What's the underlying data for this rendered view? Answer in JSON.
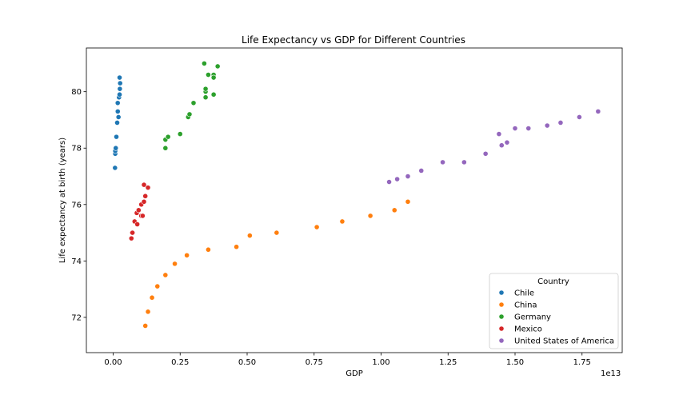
{
  "chart_data": {
    "type": "scatter",
    "title": "Life Expectancy vs GDP for Different Countries",
    "xlabel": "GDP",
    "ylabel": "Life expectancy at birth (years)",
    "x_offset_text": "1e13",
    "xlim": [
      -1000000000000.0,
      19000000000000.0
    ],
    "ylim": [
      70.75,
      81.55
    ],
    "xticks": [
      0,
      2500000000000.0,
      5000000000000.0,
      7500000000000.0,
      10000000000000.0,
      12500000000000.0,
      15000000000000.0,
      17500000000000.0
    ],
    "xtick_labels": [
      "0.00",
      "0.25",
      "0.50",
      "0.75",
      "1.00",
      "1.25",
      "1.50",
      "1.75"
    ],
    "yticks": [
      72,
      74,
      76,
      78,
      80
    ],
    "ytick_labels": [
      "72",
      "74",
      "76",
      "78",
      "80"
    ],
    "grid": false,
    "legend": {
      "title": "Country",
      "placement": "lower-right"
    },
    "series": [
      {
        "name": "Chile",
        "color": "#1f77b4",
        "points": [
          [
            69000000000.0,
            77.3
          ],
          [
            77000000000.0,
            77.8
          ],
          [
            78000000000.0,
            77.9
          ],
          [
            97000000000.0,
            78.0
          ],
          [
            120000000000.0,
            78.4
          ],
          [
            150000000000.0,
            78.9
          ],
          [
            170000000000.0,
            79.6
          ],
          [
            172000000000.0,
            79.3
          ],
          [
            199000000000.0,
            79.1
          ],
          [
            218000000000.0,
            79.8
          ],
          [
            240000000000.0,
            79.9
          ],
          [
            250000000000.0,
            80.1
          ],
          [
            260000000000.0,
            80.3
          ],
          [
            240000000000.0,
            80.5
          ]
        ]
      },
      {
        "name": "China",
        "color": "#ff7f0e",
        "points": [
          [
            1200000000000.0,
            71.7
          ],
          [
            1300000000000.0,
            72.2
          ],
          [
            1450000000000.0,
            72.7
          ],
          [
            1650000000000.0,
            73.1
          ],
          [
            1950000000000.0,
            73.5
          ],
          [
            2300000000000.0,
            73.9
          ],
          [
            2750000000000.0,
            74.2
          ],
          [
            3550000000000.0,
            74.4
          ],
          [
            4600000000000.0,
            74.5
          ],
          [
            5100000000000.0,
            74.9
          ],
          [
            6100000000000.0,
            75.0
          ],
          [
            7600000000000.0,
            75.2
          ],
          [
            8550000000000.0,
            75.4
          ],
          [
            9600000000000.0,
            75.6
          ],
          [
            10500000000000.0,
            75.8
          ],
          [
            11000000000000.0,
            76.1
          ]
        ]
      },
      {
        "name": "Germany",
        "color": "#2ca02c",
        "points": [
          [
            1950000000000.0,
            78.0
          ],
          [
            1950000000000.0,
            78.3
          ],
          [
            2050000000000.0,
            78.4
          ],
          [
            2500000000000.0,
            78.5
          ],
          [
            2800000000000.0,
            79.1
          ],
          [
            2850000000000.0,
            79.2
          ],
          [
            3000000000000.0,
            79.6
          ],
          [
            3450000000000.0,
            79.8
          ],
          [
            3450000000000.0,
            80.0
          ],
          [
            3450000000000.0,
            80.1
          ],
          [
            3750000000000.0,
            79.9
          ],
          [
            3550000000000.0,
            80.6
          ],
          [
            3750000000000.0,
            80.6
          ],
          [
            3750000000000.0,
            80.5
          ],
          [
            3400000000000.0,
            81.0
          ],
          [
            3900000000000.0,
            80.9
          ]
        ]
      },
      {
        "name": "Mexico",
        "color": "#d62728",
        "points": [
          [
            680000000000.0,
            74.8
          ],
          [
            700000000000.0,
            75.0
          ],
          [
            720000000000.0,
            75.0
          ],
          [
            800000000000.0,
            75.4
          ],
          [
            900000000000.0,
            75.3
          ],
          [
            880000000000.0,
            75.7
          ],
          [
            950000000000.0,
            75.8
          ],
          [
            1050000000000.0,
            75.6
          ],
          [
            1100000000000.0,
            75.6
          ],
          [
            1050000000000.0,
            76.0
          ],
          [
            1150000000000.0,
            76.1
          ],
          [
            1200000000000.0,
            76.3
          ],
          [
            1300000000000.0,
            76.6
          ],
          [
            1150000000000.0,
            76.7
          ]
        ]
      },
      {
        "name": "United States of America",
        "color": "#9467bd",
        "points": [
          [
            10300000000000.0,
            76.8
          ],
          [
            10600000000000.0,
            76.9
          ],
          [
            11000000000000.0,
            77.0
          ],
          [
            11500000000000.0,
            77.2
          ],
          [
            12300000000000.0,
            77.5
          ],
          [
            13100000000000.0,
            77.5
          ],
          [
            13900000000000.0,
            77.8
          ],
          [
            14500000000000.0,
            78.1
          ],
          [
            14700000000000.0,
            78.2
          ],
          [
            14400000000000.0,
            78.5
          ],
          [
            15000000000000.0,
            78.7
          ],
          [
            15500000000000.0,
            78.7
          ],
          [
            16200000000000.0,
            78.8
          ],
          [
            16700000000000.0,
            78.9
          ],
          [
            17400000000000.0,
            79.1
          ],
          [
            18100000000000.0,
            79.3
          ]
        ]
      }
    ]
  }
}
